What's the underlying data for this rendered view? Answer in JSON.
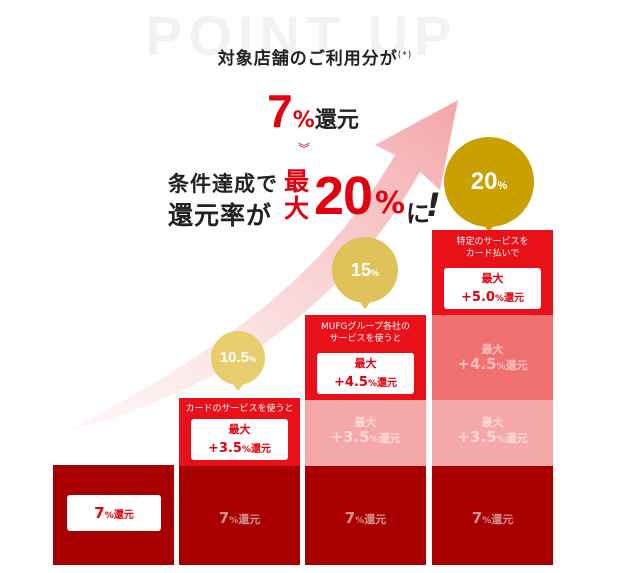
{
  "watermark": "POINT UP",
  "headline": {
    "line1": "対象店舗のご利用分が",
    "note": "(*)",
    "rate_num": "7",
    "rate_pct": "%",
    "rate_label": "還元",
    "chevron": "︾",
    "cond_line1": "条件達成で",
    "cond_line2": "還元率が",
    "max_label": "最大",
    "max_num": "20",
    "max_pct": "%",
    "suffix": "に",
    "exclaim": "!"
  },
  "columns": [
    {
      "base": {
        "num": "7",
        "pct": "%",
        "kan": "還元"
      }
    },
    {
      "badge": {
        "num": "10.5",
        "pct": "%"
      },
      "caption": "カードのサービスを使うと",
      "max": "最大",
      "plus": "+3.5",
      "pct": "%",
      "kan": "還元",
      "base": {
        "num": "7",
        "pct": "%",
        "kan": "還元"
      }
    },
    {
      "badge": {
        "num": "15",
        "pct": "%"
      },
      "caption_line1": "MUFGグループ各社の",
      "caption_line2": "サービスを使うと",
      "max": "最大",
      "plus": "+4.5",
      "pct": "%",
      "kan": "還元",
      "ghost_max": "最大",
      "ghost_plus": "+3.5",
      "ghost_pct": "%",
      "ghost_kan": "還元",
      "base": {
        "num": "7",
        "pct": "%",
        "kan": "還元"
      }
    },
    {
      "badge": {
        "num": "20",
        "pct": "%"
      },
      "caption_line1": "特定のサービスを",
      "caption_line2": "カード払いで",
      "max": "最大",
      "plus": "+5.0",
      "pct": "%",
      "kan": "還元",
      "ghost1_max": "最大",
      "ghost1_plus": "+4.5",
      "ghost1_pct": "%",
      "ghost1_kan": "還元",
      "ghost2_max": "最大",
      "ghost2_plus": "+3.5",
      "ghost2_pct": "%",
      "ghost2_kan": "還元",
      "base": {
        "num": "7",
        "pct": "%",
        "kan": "還元"
      }
    }
  ],
  "colors": {
    "red": "#e3000f",
    "dark_red": "#a80000",
    "gold": "#c9a000",
    "gold_light": "#e7cd6e"
  }
}
